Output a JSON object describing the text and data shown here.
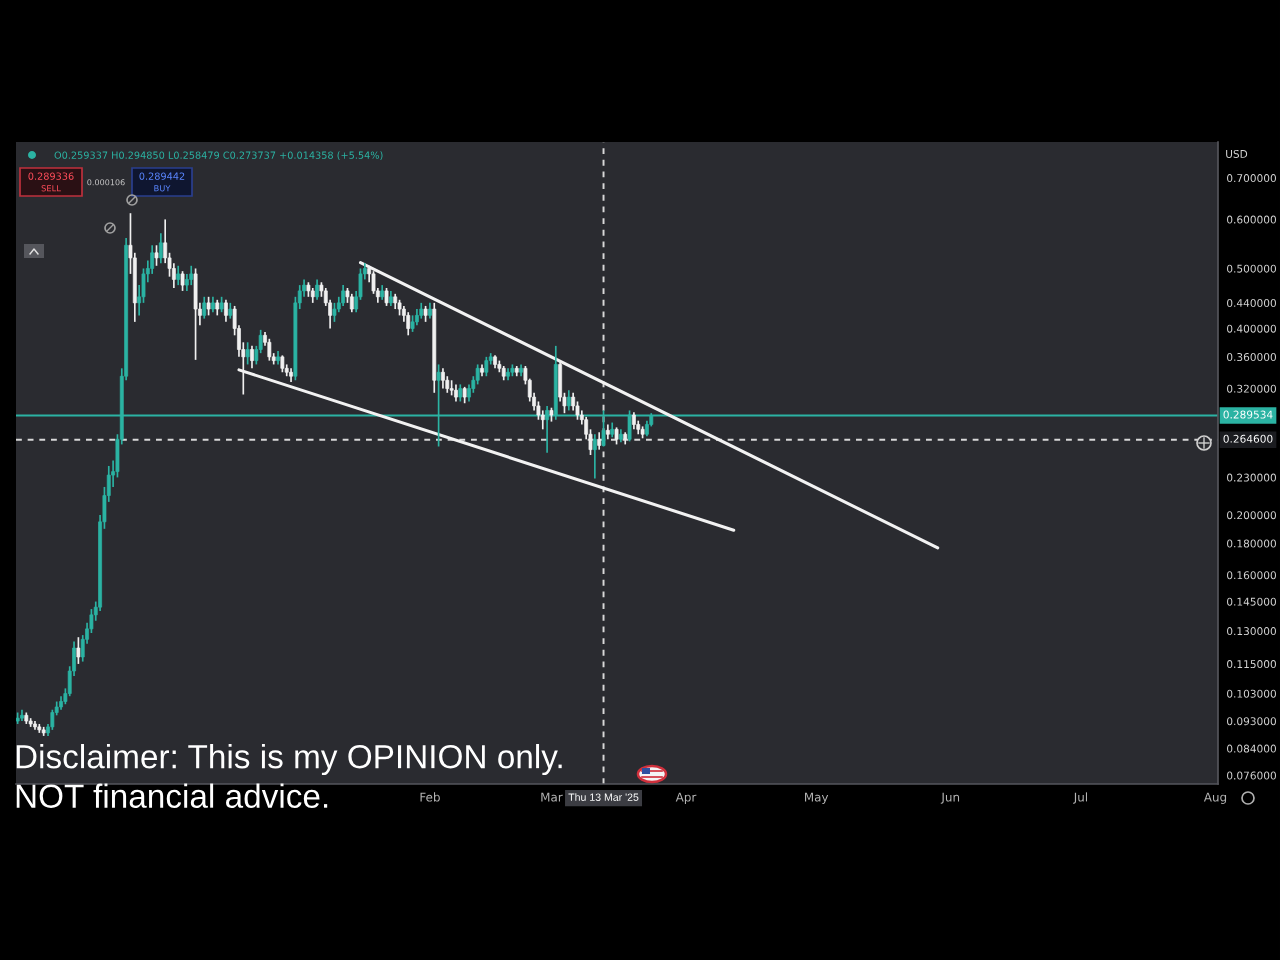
{
  "chart_data": {
    "type": "candlestick",
    "log": true,
    "ylabel": "USD",
    "x": [
      "2024-10-29",
      "2024-10-30",
      "2024-10-31",
      "2024-11-01",
      "2024-11-02",
      "2024-11-03",
      "2024-11-04",
      "2024-11-05",
      "2024-11-06",
      "2024-11-07",
      "2024-11-08",
      "2024-11-09",
      "2024-11-10",
      "2024-11-11",
      "2024-11-12",
      "2024-11-13",
      "2024-11-14",
      "2024-11-15",
      "2024-11-16",
      "2024-11-17",
      "2024-11-18",
      "2024-11-19",
      "2024-11-20",
      "2024-11-21",
      "2024-11-22",
      "2024-11-23",
      "2024-11-24",
      "2024-11-25",
      "2024-11-26",
      "2024-11-27",
      "2024-11-28",
      "2024-11-29",
      "2024-11-30",
      "2024-12-01",
      "2024-12-02",
      "2024-12-03",
      "2024-12-04",
      "2024-12-05",
      "2024-12-06",
      "2024-12-07",
      "2024-12-08",
      "2024-12-09",
      "2024-12-10",
      "2024-12-11",
      "2024-12-12",
      "2024-12-13",
      "2024-12-14",
      "2024-12-15",
      "2024-12-16",
      "2024-12-17",
      "2024-12-18",
      "2024-12-19",
      "2024-12-20",
      "2024-12-21",
      "2024-12-22",
      "2024-12-23",
      "2024-12-24",
      "2024-12-25",
      "2024-12-26",
      "2024-12-27",
      "2024-12-28",
      "2024-12-29",
      "2024-12-30",
      "2024-12-31",
      "2025-01-01",
      "2025-01-02",
      "2025-01-03",
      "2025-01-04",
      "2025-01-05",
      "2025-01-06",
      "2025-01-07",
      "2025-01-08",
      "2025-01-09",
      "2025-01-10",
      "2025-01-11",
      "2025-01-12",
      "2025-01-13",
      "2025-01-14",
      "2025-01-15",
      "2025-01-16",
      "2025-01-17",
      "2025-01-18",
      "2025-01-19",
      "2025-01-20",
      "2025-01-21",
      "2025-01-22",
      "2025-01-23",
      "2025-01-24",
      "2025-01-25",
      "2025-01-26",
      "2025-01-27",
      "2025-01-28",
      "2025-01-29",
      "2025-01-30",
      "2025-01-31",
      "2025-02-01",
      "2025-02-02",
      "2025-02-03",
      "2025-02-04",
      "2025-02-05",
      "2025-02-06",
      "2025-02-07",
      "2025-02-08",
      "2025-02-09",
      "2025-02-10",
      "2025-02-11",
      "2025-02-12",
      "2025-02-13",
      "2025-02-14",
      "2025-02-15",
      "2025-02-16",
      "2025-02-17",
      "2025-02-18",
      "2025-02-19",
      "2025-02-20",
      "2025-02-21",
      "2025-02-22",
      "2025-02-23",
      "2025-02-24",
      "2025-02-25",
      "2025-02-26",
      "2025-02-27",
      "2025-02-28",
      "2025-03-01",
      "2025-03-02",
      "2025-03-03",
      "2025-03-04",
      "2025-03-05",
      "2025-03-06",
      "2025-03-07",
      "2025-03-08",
      "2025-03-09",
      "2025-03-10",
      "2025-03-11",
      "2025-03-12",
      "2025-03-13",
      "2025-03-14",
      "2025-03-15",
      "2025-03-16",
      "2025-03-17",
      "2025-03-18",
      "2025-03-19",
      "2025-03-20",
      "2025-03-21",
      "2025-03-22",
      "2025-03-23",
      "2025-03-24"
    ],
    "ohlc": [
      [
        0.093,
        0.096,
        0.092,
        0.094
      ],
      [
        0.094,
        0.097,
        0.093,
        0.095
      ],
      [
        0.095,
        0.096,
        0.092,
        0.093
      ],
      [
        0.093,
        0.094,
        0.091,
        0.092
      ],
      [
        0.092,
        0.093,
        0.09,
        0.091
      ],
      [
        0.091,
        0.092,
        0.089,
        0.09
      ],
      [
        0.09,
        0.091,
        0.088,
        0.089
      ],
      [
        0.089,
        0.092,
        0.088,
        0.091
      ],
      [
        0.091,
        0.097,
        0.09,
        0.096
      ],
      [
        0.096,
        0.1,
        0.095,
        0.098
      ],
      [
        0.098,
        0.102,
        0.097,
        0.1
      ],
      [
        0.1,
        0.105,
        0.099,
        0.103
      ],
      [
        0.103,
        0.114,
        0.102,
        0.112
      ],
      [
        0.112,
        0.125,
        0.11,
        0.122
      ],
      [
        0.122,
        0.127,
        0.115,
        0.118
      ],
      [
        0.118,
        0.128,
        0.116,
        0.126
      ],
      [
        0.126,
        0.134,
        0.124,
        0.131
      ],
      [
        0.131,
        0.141,
        0.129,
        0.138
      ],
      [
        0.138,
        0.145,
        0.135,
        0.142
      ],
      [
        0.142,
        0.2,
        0.14,
        0.195
      ],
      [
        0.195,
        0.222,
        0.19,
        0.215
      ],
      [
        0.215,
        0.24,
        0.21,
        0.232
      ],
      [
        0.232,
        0.245,
        0.222,
        0.235
      ],
      [
        0.235,
        0.27,
        0.23,
        0.265
      ],
      [
        0.265,
        0.345,
        0.26,
        0.335
      ],
      [
        0.335,
        0.56,
        0.33,
        0.545
      ],
      [
        0.545,
        0.614,
        0.49,
        0.52
      ],
      [
        0.52,
        0.53,
        0.41,
        0.44
      ],
      [
        0.44,
        0.47,
        0.42,
        0.45
      ],
      [
        0.45,
        0.5,
        0.44,
        0.49
      ],
      [
        0.49,
        0.515,
        0.475,
        0.5
      ],
      [
        0.5,
        0.545,
        0.49,
        0.53
      ],
      [
        0.53,
        0.545,
        0.505,
        0.52
      ],
      [
        0.52,
        0.57,
        0.51,
        0.55
      ],
      [
        0.55,
        0.6,
        0.51,
        0.52
      ],
      [
        0.52,
        0.53,
        0.485,
        0.5
      ],
      [
        0.5,
        0.51,
        0.465,
        0.48
      ],
      [
        0.48,
        0.505,
        0.47,
        0.49
      ],
      [
        0.49,
        0.495,
        0.46,
        0.47
      ],
      [
        0.47,
        0.49,
        0.46,
        0.48
      ],
      [
        0.48,
        0.505,
        0.47,
        0.49
      ],
      [
        0.49,
        0.5,
        0.356,
        0.43
      ],
      [
        0.43,
        0.44,
        0.405,
        0.42
      ],
      [
        0.42,
        0.45,
        0.415,
        0.44
      ],
      [
        0.44,
        0.45,
        0.42,
        0.43
      ],
      [
        0.43,
        0.45,
        0.425,
        0.44
      ],
      [
        0.44,
        0.445,
        0.42,
        0.43
      ],
      [
        0.43,
        0.45,
        0.425,
        0.44
      ],
      [
        0.44,
        0.445,
        0.41,
        0.42
      ],
      [
        0.42,
        0.44,
        0.415,
        0.43
      ],
      [
        0.43,
        0.435,
        0.39,
        0.4
      ],
      [
        0.4,
        0.405,
        0.36,
        0.37
      ],
      [
        0.37,
        0.38,
        0.313,
        0.36
      ],
      [
        0.36,
        0.38,
        0.35,
        0.37
      ],
      [
        0.37,
        0.375,
        0.345,
        0.355
      ],
      [
        0.355,
        0.375,
        0.35,
        0.37
      ],
      [
        0.37,
        0.398,
        0.365,
        0.39
      ],
      [
        0.39,
        0.395,
        0.375,
        0.38
      ],
      [
        0.38,
        0.385,
        0.355,
        0.36
      ],
      [
        0.36,
        0.365,
        0.35,
        0.355
      ],
      [
        0.355,
        0.368,
        0.35,
        0.36
      ],
      [
        0.36,
        0.362,
        0.34,
        0.345
      ],
      [
        0.345,
        0.35,
        0.335,
        0.34
      ],
      [
        0.34,
        0.345,
        0.328,
        0.335
      ],
      [
        0.335,
        0.45,
        0.33,
        0.44
      ],
      [
        0.44,
        0.47,
        0.43,
        0.46
      ],
      [
        0.46,
        0.48,
        0.45,
        0.47
      ],
      [
        0.47,
        0.475,
        0.45,
        0.46
      ],
      [
        0.46,
        0.465,
        0.44,
        0.45
      ],
      [
        0.45,
        0.48,
        0.445,
        0.47
      ],
      [
        0.47,
        0.475,
        0.45,
        0.46
      ],
      [
        0.46,
        0.465,
        0.435,
        0.44
      ],
      [
        0.44,
        0.445,
        0.4,
        0.42
      ],
      [
        0.42,
        0.44,
        0.41,
        0.43
      ],
      [
        0.43,
        0.45,
        0.425,
        0.44
      ],
      [
        0.44,
        0.47,
        0.435,
        0.46
      ],
      [
        0.46,
        0.465,
        0.44,
        0.45
      ],
      [
        0.45,
        0.455,
        0.425,
        0.43
      ],
      [
        0.43,
        0.46,
        0.425,
        0.45
      ],
      [
        0.45,
        0.5,
        0.445,
        0.49
      ],
      [
        0.49,
        0.51,
        0.48,
        0.5
      ],
      [
        0.5,
        0.505,
        0.475,
        0.49
      ],
      [
        0.49,
        0.495,
        0.455,
        0.46
      ],
      [
        0.46,
        0.465,
        0.44,
        0.45
      ],
      [
        0.45,
        0.47,
        0.445,
        0.46
      ],
      [
        0.46,
        0.465,
        0.435,
        0.44
      ],
      [
        0.44,
        0.46,
        0.435,
        0.45
      ],
      [
        0.45,
        0.455,
        0.43,
        0.44
      ],
      [
        0.44,
        0.445,
        0.42,
        0.43
      ],
      [
        0.43,
        0.435,
        0.41,
        0.42
      ],
      [
        0.42,
        0.425,
        0.39,
        0.4
      ],
      [
        0.4,
        0.42,
        0.395,
        0.41
      ],
      [
        0.41,
        0.43,
        0.405,
        0.42
      ],
      [
        0.42,
        0.44,
        0.415,
        0.43
      ],
      [
        0.43,
        0.435,
        0.41,
        0.42
      ],
      [
        0.42,
        0.44,
        0.415,
        0.43
      ],
      [
        0.43,
        0.44,
        0.315,
        0.33
      ],
      [
        0.33,
        0.35,
        0.258,
        0.34
      ],
      [
        0.34,
        0.345,
        0.32,
        0.33
      ],
      [
        0.33,
        0.335,
        0.315,
        0.32
      ],
      [
        0.32,
        0.33,
        0.312,
        0.318
      ],
      [
        0.318,
        0.325,
        0.305,
        0.31
      ],
      [
        0.31,
        0.325,
        0.305,
        0.32
      ],
      [
        0.32,
        0.322,
        0.303,
        0.31
      ],
      [
        0.31,
        0.325,
        0.305,
        0.32
      ],
      [
        0.32,
        0.335,
        0.315,
        0.33
      ],
      [
        0.33,
        0.35,
        0.325,
        0.345
      ],
      [
        0.345,
        0.35,
        0.335,
        0.34
      ],
      [
        0.34,
        0.36,
        0.335,
        0.355
      ],
      [
        0.355,
        0.365,
        0.35,
        0.36
      ],
      [
        0.36,
        0.362,
        0.345,
        0.35
      ],
      [
        0.35,
        0.355,
        0.34,
        0.345
      ],
      [
        0.345,
        0.348,
        0.33,
        0.335
      ],
      [
        0.335,
        0.345,
        0.33,
        0.34
      ],
      [
        0.34,
        0.35,
        0.335,
        0.345
      ],
      [
        0.345,
        0.348,
        0.335,
        0.34
      ],
      [
        0.34,
        0.35,
        0.335,
        0.345
      ],
      [
        0.345,
        0.348,
        0.325,
        0.33
      ],
      [
        0.33,
        0.332,
        0.305,
        0.31
      ],
      [
        0.31,
        0.315,
        0.295,
        0.3
      ],
      [
        0.3,
        0.305,
        0.285,
        0.29
      ],
      [
        0.29,
        0.295,
        0.275,
        0.285
      ],
      [
        0.285,
        0.3,
        0.252,
        0.295
      ],
      [
        0.295,
        0.298,
        0.283,
        0.29
      ],
      [
        0.29,
        0.375,
        0.285,
        0.35
      ],
      [
        0.35,
        0.355,
        0.305,
        0.31
      ],
      [
        0.31,
        0.315,
        0.292,
        0.3
      ],
      [
        0.3,
        0.318,
        0.295,
        0.31
      ],
      [
        0.31,
        0.315,
        0.295,
        0.3
      ],
      [
        0.3,
        0.305,
        0.285,
        0.29
      ],
      [
        0.29,
        0.295,
        0.28,
        0.285
      ],
      [
        0.285,
        0.288,
        0.265,
        0.27
      ],
      [
        0.27,
        0.275,
        0.25,
        0.255
      ],
      [
        0.255,
        0.27,
        0.229,
        0.265
      ],
      [
        0.265,
        0.272,
        0.255,
        0.259
      ],
      [
        0.259,
        0.295,
        0.258,
        0.274
      ],
      [
        0.274,
        0.28,
        0.265,
        0.27
      ],
      [
        0.27,
        0.282,
        0.267,
        0.275
      ],
      [
        0.275,
        0.277,
        0.26,
        0.265
      ],
      [
        0.265,
        0.275,
        0.262,
        0.27
      ],
      [
        0.27,
        0.272,
        0.26,
        0.265
      ],
      [
        0.265,
        0.295,
        0.263,
        0.29
      ],
      [
        0.29,
        0.293,
        0.275,
        0.28
      ],
      [
        0.28,
        0.284,
        0.27,
        0.275
      ],
      [
        0.275,
        0.278,
        0.266,
        0.27
      ],
      [
        0.27,
        0.284,
        0.268,
        0.28
      ],
      [
        0.28,
        0.292,
        0.278,
        0.2895
      ]
    ],
    "colors": [
      "#2bb3a3",
      "#2bb3a3",
      "#f0f0f0",
      "#f0f0f0",
      "#f0f0f0",
      "#f0f0f0",
      "#f0f0f0",
      "#2bb3a3",
      "#2bb3a3",
      "#2bb3a3",
      "#2bb3a3",
      "#2bb3a3",
      "#2bb3a3",
      "#2bb3a3",
      "#f0f0f0",
      "#2bb3a3",
      "#2bb3a3",
      "#2bb3a3",
      "#2bb3a3",
      "#2bb3a3",
      "#2bb3a3",
      "#2bb3a3",
      "#2bb3a3",
      "#2bb3a3",
      "#2bb3a3",
      "#2bb3a3",
      "#f0f0f0",
      "#f0f0f0",
      "#2bb3a3",
      "#2bb3a3",
      "#2bb3a3",
      "#2bb3a3",
      "#f0f0f0",
      "#2bb3a3",
      "#f0f0f0",
      "#f0f0f0",
      "#f0f0f0",
      "#2bb3a3",
      "#f0f0f0",
      "#2bb3a3",
      "#2bb3a3",
      "#f0f0f0",
      "#f0f0f0",
      "#2bb3a3",
      "#f0f0f0",
      "#2bb3a3",
      "#f0f0f0",
      "#2bb3a3",
      "#f0f0f0",
      "#2bb3a3",
      "#f0f0f0",
      "#f0f0f0",
      "#f0f0f0",
      "#2bb3a3",
      "#f0f0f0",
      "#2bb3a3",
      "#2bb3a3",
      "#f0f0f0",
      "#f0f0f0",
      "#f0f0f0",
      "#2bb3a3",
      "#f0f0f0",
      "#f0f0f0",
      "#f0f0f0",
      "#2bb3a3",
      "#2bb3a3",
      "#2bb3a3",
      "#f0f0f0",
      "#f0f0f0",
      "#2bb3a3",
      "#f0f0f0",
      "#f0f0f0",
      "#f0f0f0",
      "#2bb3a3",
      "#2bb3a3",
      "#2bb3a3",
      "#f0f0f0",
      "#f0f0f0",
      "#2bb3a3",
      "#2bb3a3",
      "#2bb3a3",
      "#f0f0f0",
      "#f0f0f0",
      "#f0f0f0",
      "#2bb3a3",
      "#f0f0f0",
      "#2bb3a3",
      "#f0f0f0",
      "#f0f0f0",
      "#f0f0f0",
      "#f0f0f0",
      "#2bb3a3",
      "#2bb3a3",
      "#2bb3a3",
      "#f0f0f0",
      "#2bb3a3",
      "#f0f0f0",
      "#2bb3a3",
      "#f0f0f0",
      "#f0f0f0",
      "#f0f0f0",
      "#f0f0f0",
      "#2bb3a3",
      "#f0f0f0",
      "#2bb3a3",
      "#2bb3a3",
      "#2bb3a3",
      "#f0f0f0",
      "#2bb3a3",
      "#2bb3a3",
      "#f0f0f0",
      "#f0f0f0",
      "#f0f0f0",
      "#2bb3a3",
      "#2bb3a3",
      "#f0f0f0",
      "#2bb3a3",
      "#f0f0f0",
      "#f0f0f0",
      "#f0f0f0",
      "#f0f0f0",
      "#f0f0f0",
      "#2bb3a3",
      "#f0f0f0",
      "#2bb3a3",
      "#f0f0f0",
      "#f0f0f0",
      "#2bb3a3",
      "#f0f0f0",
      "#f0f0f0",
      "#f0f0f0",
      "#f0f0f0",
      "#f0f0f0",
      "#2bb3a3",
      "#f0f0f0",
      "#2bb3a3",
      "#f0f0f0",
      "#2bb3a3",
      "#f0f0f0",
      "#2bb3a3",
      "#f0f0f0",
      "#2bb3a3",
      "#f0f0f0",
      "#f0f0f0",
      "#f0f0f0",
      "#2bb3a3",
      "#2bb3a3"
    ],
    "series": [
      {
        "type": "line",
        "x": [
          "2025-01-16",
          "2025-05-29"
        ],
        "values": [
          0.511,
          0.177
        ],
        "color": "#f2f2f2"
      },
      {
        "type": "line",
        "x": [
          "2024-12-19",
          "2025-04-12"
        ],
        "values": [
          0.343,
          0.189
        ],
        "color": "#f2f2f2"
      }
    ],
    "xlim": [
      "2024-10-28T15:00",
      "2025-08-01T14:00"
    ],
    "xticks": [
      {
        "value": "2025-02-01",
        "label": "Feb"
      },
      {
        "value": "2025-03-01",
        "label": "Mar"
      },
      {
        "value": "2025-04-01",
        "label": "Apr"
      },
      {
        "value": "2025-05-01",
        "label": "May"
      },
      {
        "value": "2025-06-01",
        "label": "Jun"
      },
      {
        "value": "2025-07-01",
        "label": "Jul"
      },
      {
        "value": "2025-08-01",
        "label": "Aug"
      }
    ],
    "ylim": [
      0.0736,
      0.8
    ],
    "yticks": [
      {
        "value": 0.7,
        "label": "0.700000"
      },
      {
        "value": 0.6,
        "label": "0.600000"
      },
      {
        "value": 0.5,
        "label": "0.500000"
      },
      {
        "value": 0.44,
        "label": "0.440000"
      },
      {
        "value": 0.4,
        "label": "0.400000"
      },
      {
        "value": 0.36,
        "label": "0.360000"
      },
      {
        "value": 0.32,
        "label": "0.320000"
      },
      {
        "value": 0.23,
        "label": "0.230000"
      },
      {
        "value": 0.2,
        "label": "0.200000"
      },
      {
        "value": 0.18,
        "label": "0.180000"
      },
      {
        "value": 0.16,
        "label": "0.160000"
      },
      {
        "value": 0.145,
        "label": "0.145000"
      },
      {
        "value": 0.13,
        "label": "0.130000"
      },
      {
        "value": 0.115,
        "label": "0.115000"
      },
      {
        "value": 0.103,
        "label": "0.103000"
      },
      {
        "value": 0.093,
        "label": "0.093000"
      },
      {
        "value": 0.084,
        "label": "0.084000"
      },
      {
        "value": 0.076,
        "label": "0.076000"
      }
    ],
    "ref_lines": [
      {
        "axis": "y",
        "value": 0.289534,
        "label": "0.289534",
        "color": "#2bb3a3",
        "line_style": "solid"
      },
      {
        "axis": "y",
        "value": 0.2646,
        "label": "0.264600",
        "color": "#d8d8d8",
        "line_style": "dashed"
      },
      {
        "axis": "x",
        "value": "2025-03-13",
        "label": "Thu 13 Mar '25",
        "color": "#d8d8d8",
        "line_style": "dashed"
      }
    ],
    "annotations": [
      "O0.259337 H0.294850 L0.258479 C0.273737 +0.014358 (+5.54%)",
      "0.289336",
      "SELL",
      "0.000106",
      "0.289442",
      "BUY",
      "Disclaimer: This is my OPINION only.\nNOT financial advice."
    ]
  }
}
